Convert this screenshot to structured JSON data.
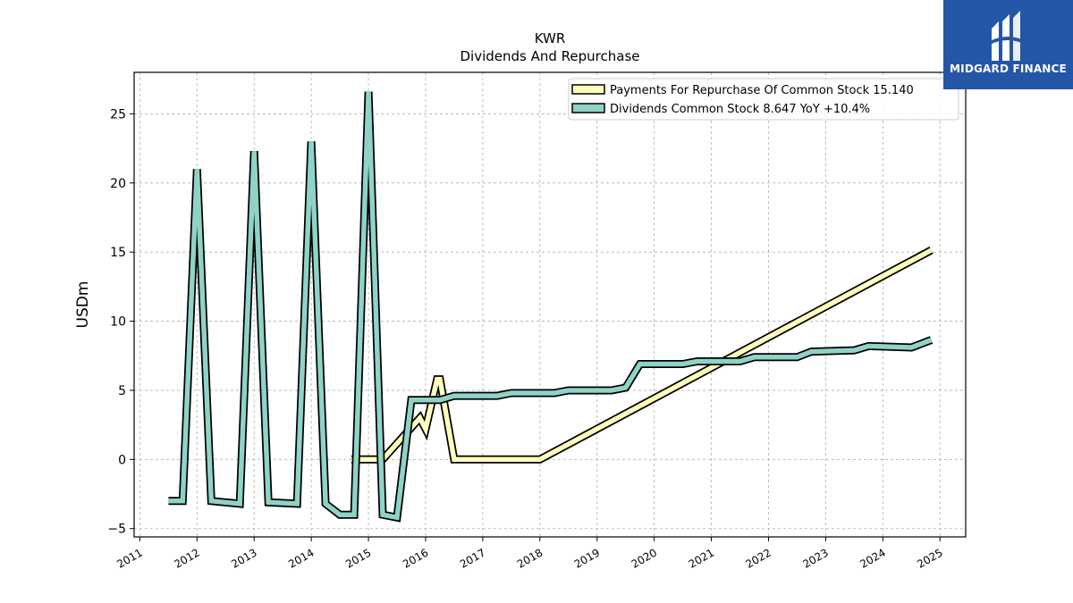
{
  "logo": {
    "text": "MIDGARD FINANCE",
    "color": "#2456a8"
  },
  "chart_data": {
    "type": "line",
    "title": "KWR",
    "subtitle": "Dividends And Repurchase",
    "xlabel": "",
    "ylabel": "USDm",
    "xlim": [
      2010.9,
      2025.45
    ],
    "ylim": [
      -5.6,
      28.0
    ],
    "x_ticks": [
      "2011",
      "2012",
      "2013",
      "2014",
      "2015",
      "2016",
      "2017",
      "2018",
      "2019",
      "2020",
      "2021",
      "2022",
      "2023",
      "2024",
      "2025"
    ],
    "y_ticks": [
      -5,
      0,
      5,
      10,
      15,
      20,
      25
    ],
    "grid": true,
    "legend_position": "top-right",
    "series": [
      {
        "name": "Payments For Repurchase Of Common Stock  15.140",
        "color": "#ffffbb",
        "x": [
          2014.7,
          2015.25,
          2015.9,
          2016.0,
          2016.2,
          2016.25,
          2016.5,
          2018.0,
          2024.85
        ],
        "y": [
          0.0,
          0.0,
          3.0,
          2.2,
          5.8,
          5.8,
          0.0,
          0.0,
          15.14
        ]
      },
      {
        "name": "Dividends Common Stock  8.647 YoY +10.4%",
        "color": "#8ed3c6",
        "x": [
          2011.5,
          2011.75,
          2012.0,
          2012.25,
          2012.75,
          2013.0,
          2013.25,
          2013.75,
          2014.0,
          2014.25,
          2014.5,
          2014.75,
          2015.0,
          2015.25,
          2015.5,
          2015.75,
          2016.25,
          2016.5,
          2017.25,
          2017.5,
          2018.25,
          2018.5,
          2019.25,
          2019.5,
          2019.75,
          2020.5,
          2020.75,
          2021.5,
          2021.75,
          2022.5,
          2022.75,
          2023.5,
          2023.75,
          2024.5,
          2024.85
        ],
        "y": [
          -3.0,
          -3.0,
          21.0,
          -3.0,
          -3.2,
          22.3,
          -3.1,
          -3.2,
          23.0,
          -3.2,
          -4.0,
          -4.0,
          26.6,
          -4.0,
          -4.2,
          4.3,
          4.3,
          4.6,
          4.6,
          4.8,
          4.8,
          5.0,
          5.0,
          5.2,
          6.9,
          6.9,
          7.1,
          7.1,
          7.4,
          7.4,
          7.8,
          7.9,
          8.2,
          8.1,
          8.65
        ]
      }
    ]
  }
}
